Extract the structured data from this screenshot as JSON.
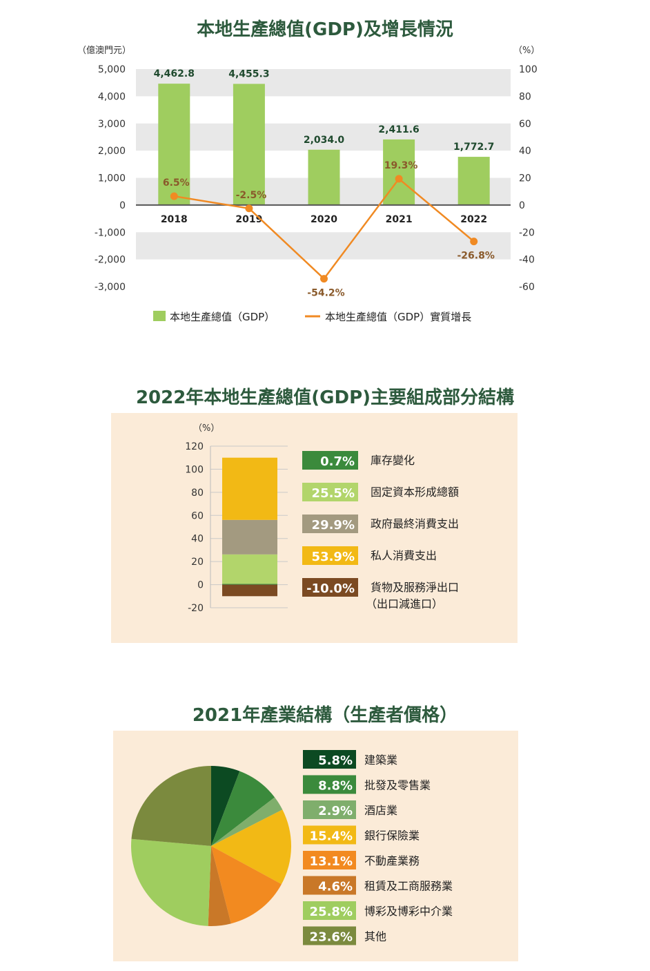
{
  "charts": [
    {
      "title": "本地生產總值(GDP)及增長情況",
      "chart_data": {
        "type": "bar+line",
        "categories": [
          "2018",
          "2019",
          "2020",
          "2021",
          "2022"
        ],
        "left_unit": "（億澳門元）",
        "right_unit": "（%）",
        "left_ticks": [
          "5,000",
          "4,000",
          "3,000",
          "2,000",
          "1,000",
          "0",
          "-1,000",
          "-2,000",
          "-3,000"
        ],
        "right_ticks": [
          "100",
          "80",
          "60",
          "40",
          "20",
          "0",
          "-20",
          "-40",
          "-60"
        ],
        "ylim_left": [
          -3000,
          5000
        ],
        "ylim_right": [
          -60,
          100
        ],
        "series": [
          {
            "name": "本地生產總值（GDP）",
            "type": "bar",
            "axis": "left",
            "values": [
              4462.8,
              4455.3,
              2034.0,
              2411.6,
              1772.7
            ],
            "labels": [
              "4,462.8",
              "4,455.3",
              "2,034.0",
              "2,411.6",
              "1,772.7"
            ],
            "color": "#9fcd5f"
          },
          {
            "name": "本地生產總值（GDP）實質增長",
            "type": "line",
            "axis": "right",
            "values": [
              6.5,
              -2.5,
              -54.2,
              19.3,
              -26.8
            ],
            "labels": [
              "6.5%",
              "-2.5%",
              "-54.2%",
              "19.3%",
              "-26.8%"
            ],
            "color": "#f08a23"
          }
        ],
        "grid": "alternating bands",
        "legend": "bottom"
      }
    },
    {
      "title": "2022年本地生產總值(GDP)主要組成部分結構",
      "chart_data": {
        "type": "stacked-bar",
        "unit": "（%）",
        "ticks": [
          "120",
          "100",
          "80",
          "60",
          "40",
          "20",
          "0",
          "-20"
        ],
        "ylim": [
          -20,
          120
        ],
        "components": [
          {
            "name": "庫存變化",
            "value": 0.7,
            "label": "0.7%",
            "color": "#3b8a3c"
          },
          {
            "name": "固定資本形成總額",
            "value": 25.5,
            "label": "25.5%",
            "color": "#b2d56b"
          },
          {
            "name": "政府最終消費支出",
            "value": 29.9,
            "label": "29.9%",
            "color": "#a39a80"
          },
          {
            "name": "私人消費支出",
            "value": 53.9,
            "label": "53.9%",
            "color": "#f2b915"
          },
          {
            "name": "貨物及服務淨出口",
            "name2": "（出口減進口）",
            "value": -10.0,
            "label": "-10.0%",
            "color": "#7b4a22"
          }
        ],
        "legend": "right"
      }
    },
    {
      "title": "2021年產業結構（生產者價格）",
      "chart_data": {
        "type": "pie",
        "slices": [
          {
            "name": "建築業",
            "value": 5.8,
            "label": "5.8%",
            "color": "#0c4a22"
          },
          {
            "name": "批發及零售業",
            "value": 8.8,
            "label": "8.8%",
            "color": "#3b8a3c"
          },
          {
            "name": "酒店業",
            "value": 2.9,
            "label": "2.9%",
            "color": "#7fae6c"
          },
          {
            "name": "銀行保險業",
            "value": 15.4,
            "label": "15.4%",
            "color": "#f2b915"
          },
          {
            "name": "不動產業務",
            "value": 13.1,
            "label": "13.1%",
            "color": "#f28a20"
          },
          {
            "name": "租賃及工商服務業",
            "value": 4.6,
            "label": "4.6%",
            "color": "#c97828"
          },
          {
            "name": "博彩及博彩中介業",
            "value": 25.8,
            "label": "25.8%",
            "color": "#9fcd5f"
          },
          {
            "name": "其他",
            "value": 23.6,
            "label": "23.6%",
            "color": "#7b8a3e"
          }
        ],
        "legend": "right"
      }
    }
  ]
}
